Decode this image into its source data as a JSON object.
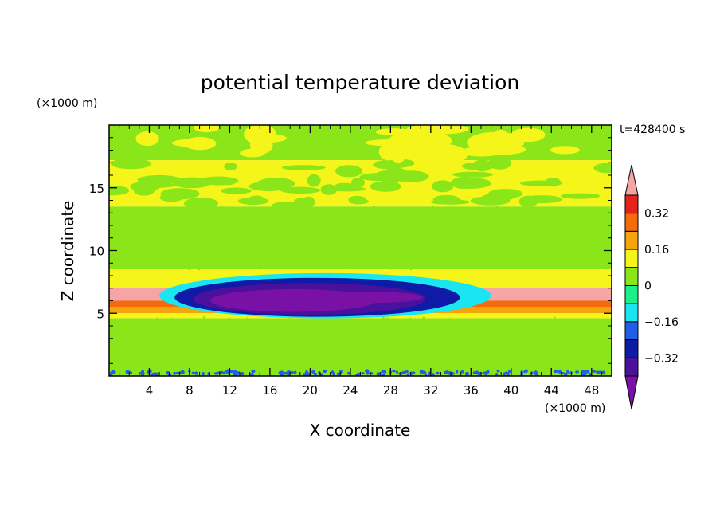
{
  "chart_data": {
    "type": "heatmap",
    "title": "potential temperature deviation",
    "time_label": "t=428400 s",
    "xlabel": "X coordinate",
    "ylabel": "Z coordinate",
    "x_unit": "(×1000 m)",
    "z_unit": "(×1000 m)",
    "xlim": [
      0,
      50
    ],
    "ylim": [
      0,
      20
    ],
    "x_ticks": [
      "4",
      "8",
      "12",
      "16",
      "20",
      "24",
      "28",
      "32",
      "36",
      "40",
      "44",
      "48"
    ],
    "y_ticks": [
      "5",
      "10",
      "15"
    ],
    "colorbar": {
      "levels": [
        -0.48,
        -0.4,
        -0.32,
        -0.24,
        -0.16,
        -0.08,
        0,
        0.08,
        0.16,
        0.24,
        0.32,
        0.4
      ],
      "colors": [
        "#7a11a6",
        "#4a129c",
        "#0f1aa6",
        "#1e5fe6",
        "#19e6f0",
        "#19f08a",
        "#8be619",
        "#f5f51a",
        "#f5a50c",
        "#f56b0c",
        "#e6231a",
        "#f5a5a5"
      ],
      "tick_labels": [
        "0.32",
        "0.16",
        "0",
        "−0.16",
        "−0.32"
      ]
    },
    "layers": [
      {
        "z_min": 17.2,
        "z_max": 20.0,
        "level": 0.0
      },
      {
        "z_min": 13.5,
        "z_max": 17.2,
        "level": 0.08
      },
      {
        "z_min": 8.5,
        "z_max": 13.5,
        "level": 0.06
      },
      {
        "z_min": 7.0,
        "z_max": 8.5,
        "level": 0.12
      },
      {
        "z_min": 6.0,
        "z_max": 7.0,
        "level": 0.44
      },
      {
        "z_min": 5.5,
        "z_max": 6.0,
        "level": 0.28
      },
      {
        "z_min": 5.0,
        "z_max": 5.5,
        "level": 0.2
      },
      {
        "z_min": 4.6,
        "z_max": 5.0,
        "level": 0.1
      },
      {
        "z_min": 0.0,
        "z_max": 4.6,
        "level": 0.04
      }
    ],
    "anomaly": {
      "x_min": 5,
      "x_max": 38,
      "z_min": 4.4,
      "z_max": 8.4,
      "core_level": -0.46,
      "ring_levels": [
        -0.38,
        -0.28,
        -0.12
      ]
    }
  }
}
